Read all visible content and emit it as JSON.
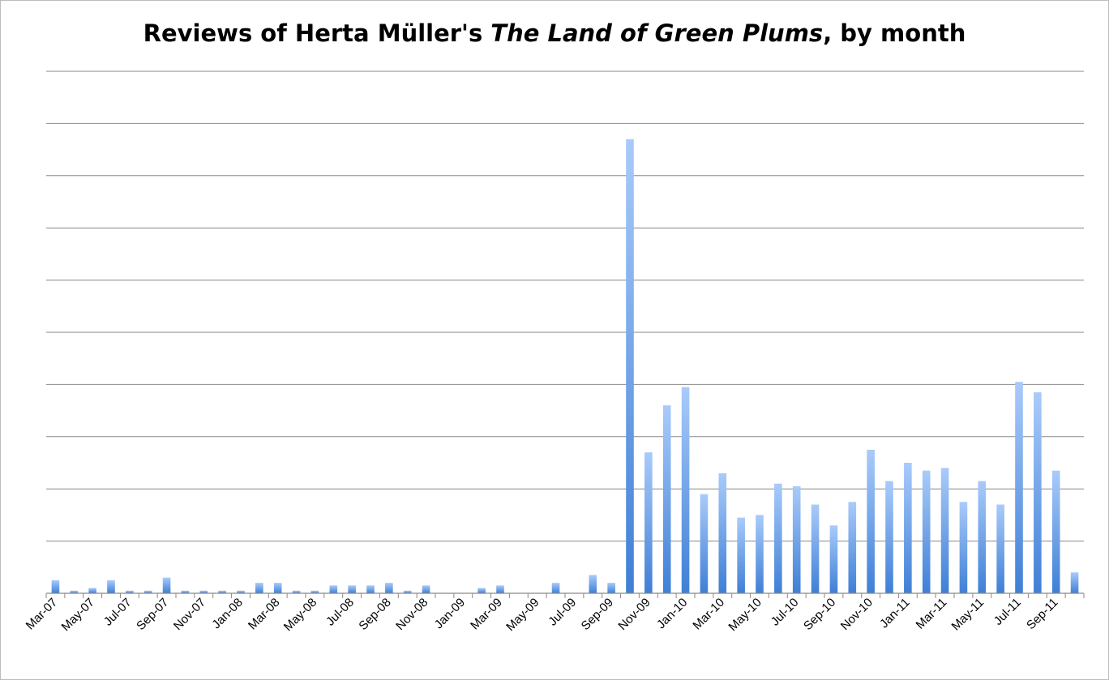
{
  "chart_data": {
    "type": "bar",
    "title_parts": {
      "before": "Reviews of Herta Müller's ",
      "italic": "The Land of Green Plums",
      "after": ", by month"
    },
    "xlabel": "",
    "ylabel": "",
    "grid": true,
    "y_tick_labels_shown": false,
    "ylim": [
      0,
      100
    ],
    "tick_labels": [
      "Mar-07",
      "May-07",
      "Jul-07",
      "Sep-07",
      "Nov-07",
      "Jan-08",
      "Mar-08",
      "May-08",
      "Jul-08",
      "Sep-08",
      "Nov-08",
      "Jan-09",
      "Mar-09",
      "May-09",
      "Jul-09",
      "Sep-09",
      "Nov-09",
      "Jan-10",
      "Mar-10",
      "May-10",
      "Jul-10",
      "Sep-10",
      "Nov-10",
      "Jan-11",
      "Mar-11",
      "May-11",
      "Jul-11",
      "Sep-11"
    ],
    "bar_color": "#3f7fd6",
    "values": [
      2.5,
      0.5,
      1,
      2.5,
      0.5,
      0.5,
      3,
      0.5,
      0.5,
      0.5,
      0.5,
      2,
      2,
      0.5,
      0.5,
      1.5,
      1.5,
      1.5,
      2,
      0.5,
      1.5,
      0,
      0,
      1,
      1.5,
      0,
      0,
      2,
      0,
      3.5,
      2,
      87,
      27,
      36,
      39.5,
      19,
      23,
      14.5,
      15,
      21,
      20.5,
      17,
      13,
      17.5,
      27.5,
      21.5,
      25,
      23.5,
      24,
      17.5,
      21.5,
      17,
      40.5,
      38.5,
      23.5,
      4
    ]
  }
}
